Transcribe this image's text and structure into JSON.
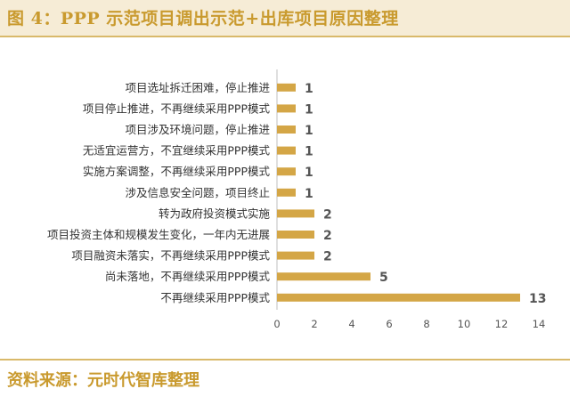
{
  "header": {
    "title": "图 4：PPP 示范项目调出示范+出库项目原因整理"
  },
  "footer": {
    "source": "资料来源：元时代智库整理"
  },
  "colors": {
    "bar": "#d4a646",
    "accent": "#c99a2e",
    "axis": "#bfbfbf",
    "label": "#333333"
  },
  "chart_data": {
    "type": "bar",
    "orientation": "horizontal",
    "categories": [
      "项目选址拆迁困难，停止推进",
      "项目停止推进，不再继续采用PPP模式",
      "项目涉及环境问题，停止推进",
      "无适宜运营方，不宜继续采用PPP模式",
      "实施方案调整，不再继续采用PPP模式",
      "涉及信息安全问题，项目终止",
      "转为政府投资模式实施",
      "项目投资主体和规模发生变化，一年内无进展",
      "项目融资未落实，不再继续采用PPP模式",
      "尚未落地，不再继续采用PPP模式",
      "不再继续采用PPP模式"
    ],
    "values": [
      1,
      1,
      1,
      1,
      1,
      1,
      2,
      2,
      2,
      5,
      13
    ],
    "xlim": [
      0,
      14
    ],
    "xticks": [
      0,
      2,
      4,
      6,
      8,
      10,
      12,
      14
    ],
    "grid": false,
    "legend": "none"
  }
}
